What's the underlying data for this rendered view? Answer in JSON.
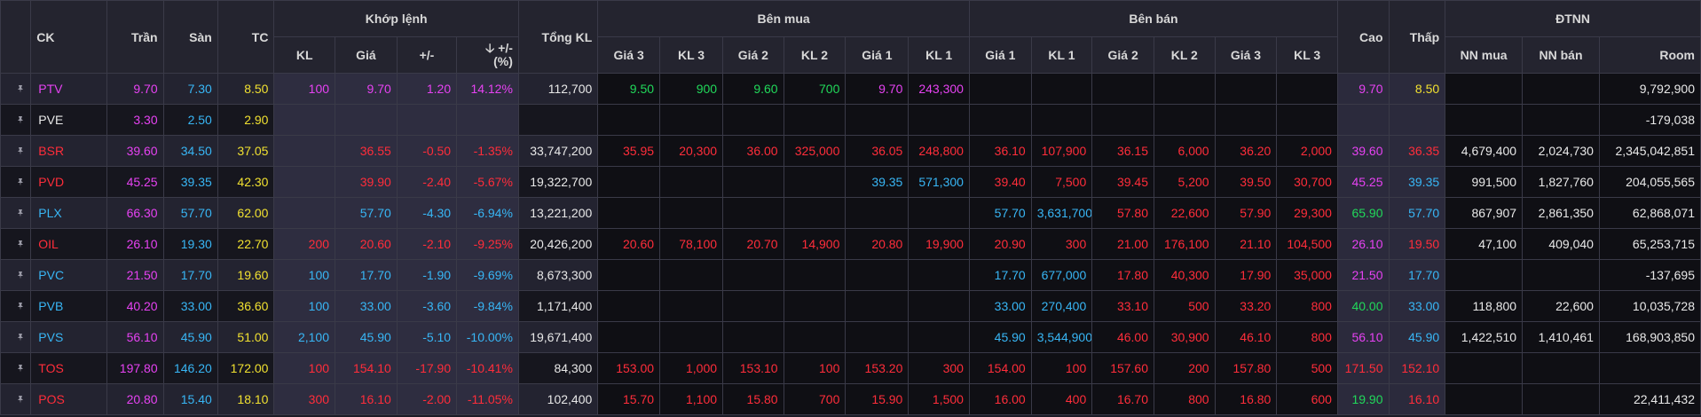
{
  "header": {
    "ck": "CK",
    "tran": "Trần",
    "san": "Sàn",
    "tc": "TC",
    "khop_lenh": "Khớp lệnh",
    "kl": "KL",
    "gia": "Giá",
    "change": "+/-",
    "change_pct_1": "+/-",
    "change_pct_2": "(%)",
    "tong_kl": "Tổng KL",
    "ben_mua": "Bên mua",
    "ben_ban": "Bên bán",
    "gia3": "Giá 3",
    "kl3": "KL 3",
    "gia2": "Giá 2",
    "kl2": "KL 2",
    "gia1": "Giá 1",
    "kl1": "KL 1",
    "cao": "Cao",
    "thap": "Thấp",
    "dtnn": "ĐTNN",
    "nn_mua": "NN mua",
    "nn_ban": "NN bán",
    "room": "Room"
  },
  "colors": {
    "ceiling": "#e642f2",
    "floor": "#38b6f5",
    "reference": "#f0e030",
    "up": "#21d85a",
    "down": "#ff2d3a",
    "neutral": "#e8e8e8"
  },
  "icons": {
    "pin": "pin-icon",
    "sort": "sort-down-icon"
  },
  "rows": [
    {
      "symbol": "PTV",
      "tran": "9.70",
      "san": "7.30",
      "tc": "8.50",
      "kl": "100",
      "gia": "9.70",
      "change": "1.20",
      "change_pct": "14.12%",
      "tong_kl": "112,700",
      "buy": {
        "gia3": "9.50",
        "kl3": "900",
        "gia2": "9.60",
        "kl2": "700",
        "gia1": "9.70",
        "kl1": "243,300"
      },
      "sell": {
        "gia1": "",
        "kl1": "",
        "gia2": "",
        "kl2": "",
        "gia3": "",
        "kl3": ""
      },
      "cao": "9.70",
      "thap": "8.50",
      "nn_mua": "",
      "nn_ban": "",
      "room": "9,792,900",
      "cls": {
        "sym": "ceil",
        "match": "ceil",
        "buy3": "up",
        "buy2": "up",
        "buy1": "ceil",
        "sell1": "white",
        "sell2": "white",
        "sell3": "white",
        "cao": "ceil",
        "thap": "ref"
      }
    },
    {
      "symbol": "PVE",
      "tran": "3.30",
      "san": "2.50",
      "tc": "2.90",
      "kl": "",
      "gia": "",
      "change": "",
      "change_pct": "",
      "tong_kl": "",
      "buy": {
        "gia3": "",
        "kl3": "",
        "gia2": "",
        "kl2": "",
        "gia1": "",
        "kl1": ""
      },
      "sell": {
        "gia1": "",
        "kl1": "",
        "gia2": "",
        "kl2": "",
        "gia3": "",
        "kl3": ""
      },
      "cao": "",
      "thap": "",
      "nn_mua": "",
      "nn_ban": "",
      "room": "-179,038",
      "cls": {
        "sym": "white",
        "match": "white",
        "buy3": "white",
        "buy2": "white",
        "buy1": "white",
        "sell1": "white",
        "sell2": "white",
        "sell3": "white",
        "cao": "white",
        "thap": "white"
      }
    },
    {
      "symbol": "BSR",
      "tran": "39.60",
      "san": "34.50",
      "tc": "37.05",
      "kl": "",
      "gia": "36.55",
      "change": "-0.50",
      "change_pct": "-1.35%",
      "tong_kl": "33,747,200",
      "buy": {
        "gia3": "35.95",
        "kl3": "20,300",
        "gia2": "36.00",
        "kl2": "325,000",
        "gia1": "36.05",
        "kl1": "248,800"
      },
      "sell": {
        "gia1": "36.10",
        "kl1": "107,900",
        "gia2": "36.15",
        "kl2": "6,000",
        "gia3": "36.20",
        "kl3": "2,000"
      },
      "cao": "39.60",
      "thap": "36.35",
      "nn_mua": "4,679,400",
      "nn_ban": "2,024,730",
      "room": "2,345,042,851",
      "cls": {
        "sym": "down",
        "match": "down",
        "buy3": "down",
        "buy2": "down",
        "buy1": "down",
        "sell1": "down",
        "sell2": "down",
        "sell3": "down",
        "cao": "ceil",
        "thap": "down"
      }
    },
    {
      "symbol": "PVD",
      "tran": "45.25",
      "san": "39.35",
      "tc": "42.30",
      "kl": "",
      "gia": "39.90",
      "change": "-2.40",
      "change_pct": "-5.67%",
      "tong_kl": "19,322,700",
      "buy": {
        "gia3": "",
        "kl3": "",
        "gia2": "",
        "kl2": "",
        "gia1": "39.35",
        "kl1": "571,300"
      },
      "sell": {
        "gia1": "39.40",
        "kl1": "7,500",
        "gia2": "39.45",
        "kl2": "5,200",
        "gia3": "39.50",
        "kl3": "30,700"
      },
      "cao": "45.25",
      "thap": "39.35",
      "nn_mua": "991,500",
      "nn_ban": "1,827,760",
      "room": "204,055,565",
      "cls": {
        "sym": "down",
        "match": "down",
        "buy3": "white",
        "buy2": "white",
        "buy1": "floor",
        "sell1": "down",
        "sell2": "down",
        "sell3": "down",
        "cao": "ceil",
        "thap": "floor"
      }
    },
    {
      "symbol": "PLX",
      "tran": "66.30",
      "san": "57.70",
      "tc": "62.00",
      "kl": "",
      "gia": "57.70",
      "change": "-4.30",
      "change_pct": "-6.94%",
      "tong_kl": "13,221,200",
      "buy": {
        "gia3": "",
        "kl3": "",
        "gia2": "",
        "kl2": "",
        "gia1": "",
        "kl1": ""
      },
      "sell": {
        "gia1": "57.70",
        "kl1": "3,631,700",
        "gia2": "57.80",
        "kl2": "22,600",
        "gia3": "57.90",
        "kl3": "29,300"
      },
      "cao": "65.90",
      "thap": "57.70",
      "nn_mua": "867,907",
      "nn_ban": "2,861,350",
      "room": "62,868,071",
      "cls": {
        "sym": "floor",
        "match": "floor",
        "buy3": "white",
        "buy2": "white",
        "buy1": "white",
        "sell1": "floor",
        "sell2": "down",
        "sell3": "down",
        "cao": "up",
        "thap": "floor"
      }
    },
    {
      "symbol": "OIL",
      "tran": "26.10",
      "san": "19.30",
      "tc": "22.70",
      "kl": "200",
      "gia": "20.60",
      "change": "-2.10",
      "change_pct": "-9.25%",
      "tong_kl": "20,426,200",
      "buy": {
        "gia3": "20.60",
        "kl3": "78,100",
        "gia2": "20.70",
        "kl2": "14,900",
        "gia1": "20.80",
        "kl1": "19,900"
      },
      "sell": {
        "gia1": "20.90",
        "kl1": "300",
        "gia2": "21.00",
        "kl2": "176,100",
        "gia3": "21.10",
        "kl3": "104,500"
      },
      "cao": "26.10",
      "thap": "19.50",
      "nn_mua": "47,100",
      "nn_ban": "409,040",
      "room": "65,253,715",
      "cls": {
        "sym": "down",
        "match": "down",
        "buy3": "down",
        "buy2": "down",
        "buy1": "down",
        "sell1": "down",
        "sell2": "down",
        "sell3": "down",
        "cao": "ceil",
        "thap": "down"
      }
    },
    {
      "symbol": "PVC",
      "tran": "21.50",
      "san": "17.70",
      "tc": "19.60",
      "kl": "100",
      "gia": "17.70",
      "change": "-1.90",
      "change_pct": "-9.69%",
      "tong_kl": "8,673,300",
      "buy": {
        "gia3": "",
        "kl3": "",
        "gia2": "",
        "kl2": "",
        "gia1": "",
        "kl1": ""
      },
      "sell": {
        "gia1": "17.70",
        "kl1": "677,000",
        "gia2": "17.80",
        "kl2": "40,300",
        "gia3": "17.90",
        "kl3": "35,000"
      },
      "cao": "21.50",
      "thap": "17.70",
      "nn_mua": "",
      "nn_ban": "",
      "room": "-137,695",
      "cls": {
        "sym": "floor",
        "match": "floor",
        "buy3": "white",
        "buy2": "white",
        "buy1": "white",
        "sell1": "floor",
        "sell2": "down",
        "sell3": "down",
        "cao": "ceil",
        "thap": "floor"
      }
    },
    {
      "symbol": "PVB",
      "tran": "40.20",
      "san": "33.00",
      "tc": "36.60",
      "kl": "100",
      "gia": "33.00",
      "change": "-3.60",
      "change_pct": "-9.84%",
      "tong_kl": "1,171,400",
      "buy": {
        "gia3": "",
        "kl3": "",
        "gia2": "",
        "kl2": "",
        "gia1": "",
        "kl1": ""
      },
      "sell": {
        "gia1": "33.00",
        "kl1": "270,400",
        "gia2": "33.10",
        "kl2": "500",
        "gia3": "33.20",
        "kl3": "800"
      },
      "cao": "40.00",
      "thap": "33.00",
      "nn_mua": "118,800",
      "nn_ban": "22,600",
      "room": "10,035,728",
      "cls": {
        "sym": "floor",
        "match": "floor",
        "buy3": "white",
        "buy2": "white",
        "buy1": "white",
        "sell1": "floor",
        "sell2": "down",
        "sell3": "down",
        "cao": "up",
        "thap": "floor"
      }
    },
    {
      "symbol": "PVS",
      "tran": "56.10",
      "san": "45.90",
      "tc": "51.00",
      "kl": "2,100",
      "gia": "45.90",
      "change": "-5.10",
      "change_pct": "-10.00%",
      "tong_kl": "19,671,400",
      "buy": {
        "gia3": "",
        "kl3": "",
        "gia2": "",
        "kl2": "",
        "gia1": "",
        "kl1": ""
      },
      "sell": {
        "gia1": "45.90",
        "kl1": "3,544,900",
        "gia2": "46.00",
        "kl2": "30,900",
        "gia3": "46.10",
        "kl3": "800"
      },
      "cao": "56.10",
      "thap": "45.90",
      "nn_mua": "1,422,510",
      "nn_ban": "1,410,461",
      "room": "168,903,850",
      "cls": {
        "sym": "floor",
        "match": "floor",
        "buy3": "white",
        "buy2": "white",
        "buy1": "white",
        "sell1": "floor",
        "sell2": "down",
        "sell3": "down",
        "cao": "ceil",
        "thap": "floor"
      }
    },
    {
      "symbol": "TOS",
      "tran": "197.80",
      "san": "146.20",
      "tc": "172.00",
      "kl": "100",
      "gia": "154.10",
      "change": "-17.90",
      "change_pct": "-10.41%",
      "tong_kl": "84,300",
      "buy": {
        "gia3": "153.00",
        "kl3": "1,000",
        "gia2": "153.10",
        "kl2": "100",
        "gia1": "153.20",
        "kl1": "300"
      },
      "sell": {
        "gia1": "154.00",
        "kl1": "100",
        "gia2": "157.60",
        "kl2": "200",
        "gia3": "157.80",
        "kl3": "500"
      },
      "cao": "171.50",
      "thap": "152.10",
      "nn_mua": "",
      "nn_ban": "",
      "room": "",
      "cls": {
        "sym": "down",
        "match": "down",
        "buy3": "down",
        "buy2": "down",
        "buy1": "down",
        "sell1": "down",
        "sell2": "down",
        "sell3": "down",
        "cao": "down",
        "thap": "down"
      }
    },
    {
      "symbol": "POS",
      "tran": "20.80",
      "san": "15.40",
      "tc": "18.10",
      "kl": "300",
      "gia": "16.10",
      "change": "-2.00",
      "change_pct": "-11.05%",
      "tong_kl": "102,400",
      "buy": {
        "gia3": "15.70",
        "kl3": "1,100",
        "gia2": "15.80",
        "kl2": "700",
        "gia1": "15.90",
        "kl1": "1,500"
      },
      "sell": {
        "gia1": "16.00",
        "kl1": "400",
        "gia2": "16.70",
        "kl2": "800",
        "gia3": "16.80",
        "kl3": "600"
      },
      "cao": "19.90",
      "thap": "16.10",
      "nn_mua": "",
      "nn_ban": "",
      "room": "22,411,432",
      "cls": {
        "sym": "down",
        "match": "down",
        "buy3": "down",
        "buy2": "down",
        "buy1": "down",
        "sell1": "down",
        "sell2": "down",
        "sell3": "down",
        "cao": "up",
        "thap": "down"
      }
    }
  ]
}
